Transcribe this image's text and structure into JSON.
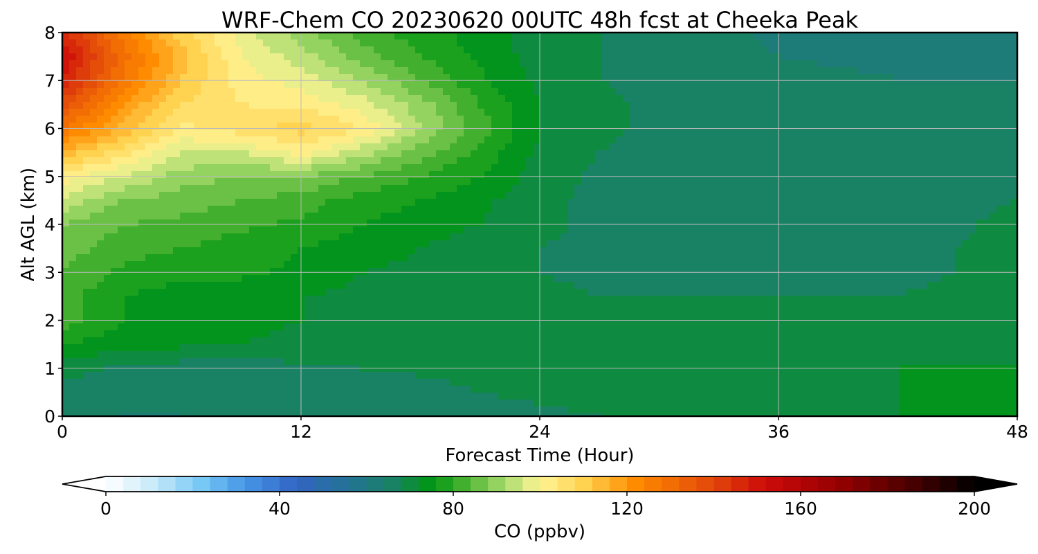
{
  "chart_data": {
    "type": "heatmap",
    "title": "WRF-Chem CO  20230620 00UTC 48h fcst at Cheeka Peak",
    "xlabel": "Forecast Time (Hour)",
    "ylabel": "Alt AGL (km)",
    "xlim": [
      0,
      48
    ],
    "ylim": [
      0,
      8
    ],
    "x_ticks": [
      0,
      12,
      24,
      36,
      48
    ],
    "y_ticks": [
      0,
      1,
      2,
      3,
      4,
      5,
      6,
      7,
      8
    ],
    "grid": true,
    "x_hours": [
      0,
      3,
      6,
      9,
      12,
      15,
      18,
      21,
      24,
      27,
      30,
      33,
      36,
      39,
      42,
      45,
      48
    ],
    "y_km": [
      0,
      0.5,
      1,
      1.5,
      2,
      2.5,
      3,
      3.5,
      4,
      4.5,
      5,
      5.5,
      6,
      6.5,
      7,
      7.5,
      8
    ],
    "co_ppbv": [
      [
        65,
        64,
        64,
        64,
        64,
        64,
        65,
        66,
        67,
        68,
        70,
        70,
        71,
        71,
        72,
        72,
        72
      ],
      [
        66,
        65,
        64,
        64,
        64,
        64,
        66,
        68,
        69,
        70,
        71,
        72,
        71,
        71,
        72,
        72,
        72
      ],
      [
        70,
        67,
        66,
        66,
        67,
        68,
        69,
        70,
        72,
        71,
        71,
        70,
        71,
        71,
        72,
        72,
        72
      ],
      [
        76,
        74,
        73,
        72,
        71,
        71,
        70,
        70,
        70,
        70,
        70,
        71,
        71,
        71,
        71,
        71,
        71
      ],
      [
        82,
        76,
        74,
        73,
        72,
        71,
        71,
        71,
        70,
        70,
        70,
        70,
        70,
        70,
        70,
        71,
        70
      ],
      [
        82,
        76,
        74,
        73,
        72,
        71,
        70,
        70,
        69,
        68,
        68,
        68,
        68,
        68,
        68,
        69,
        70
      ],
      [
        84,
        79,
        77,
        77,
        75,
        72,
        71,
        70,
        68,
        67,
        67,
        67,
        67,
        67,
        67,
        68,
        70
      ],
      [
        86,
        82,
        80,
        78,
        76,
        74,
        72,
        70,
        68,
        67,
        66,
        66,
        66,
        66,
        66,
        68,
        71
      ],
      [
        88,
        84,
        83,
        81,
        79,
        76,
        74,
        72,
        69,
        67,
        66,
        66,
        66,
        66,
        66,
        67,
        70
      ],
      [
        95,
        88,
        86,
        84,
        82,
        78,
        76,
        73,
        69,
        67,
        66,
        66,
        66,
        66,
        66,
        66,
        68
      ],
      [
        102,
        96,
        90,
        88,
        88,
        84,
        80,
        76,
        70,
        67,
        66,
        66,
        66,
        66,
        66,
        66,
        66
      ],
      [
        115,
        106,
        96,
        96,
        102,
        94,
        86,
        79,
        71,
        68,
        66,
        66,
        66,
        66,
        66,
        66,
        66
      ],
      [
        128,
        115,
        103,
        106,
        110,
        104,
        92,
        82,
        72,
        69,
        67,
        67,
        67,
        67,
        67,
        66,
        66
      ],
      [
        138,
        120,
        108,
        104,
        103,
        98,
        90,
        80,
        72,
        69,
        67,
        67,
        66,
        66,
        66,
        66,
        66
      ],
      [
        148,
        128,
        112,
        102,
        98,
        92,
        84,
        77,
        71,
        68,
        67,
        66,
        66,
        65,
        64,
        64,
        64
      ],
      [
        152,
        130,
        114,
        100,
        94,
        86,
        80,
        75,
        70,
        68,
        67,
        66,
        64,
        63,
        63,
        63,
        64
      ],
      [
        146,
        126,
        110,
        98,
        90,
        82,
        78,
        74,
        70,
        68,
        66,
        65,
        63,
        62,
        62,
        62,
        63
      ]
    ],
    "colorbar": {
      "label": "CO  (ppbv)",
      "min": 0,
      "max": 200,
      "ticks": [
        0,
        40,
        80,
        120,
        160,
        200
      ],
      "extend": "both",
      "placement": "bottom"
    }
  }
}
